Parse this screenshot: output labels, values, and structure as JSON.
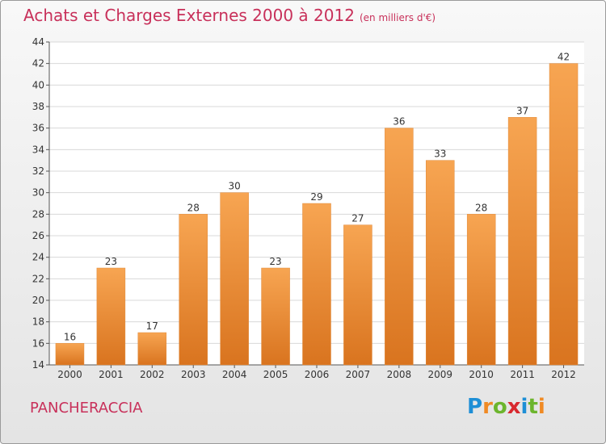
{
  "title": "Achats et Charges Externes 2000 à 2012",
  "subtitle": "(en milliers d'€)",
  "commune": "PANCHERACCIA",
  "logo": {
    "letters": [
      "P",
      "r",
      "o",
      "x",
      "i",
      "t",
      "i"
    ],
    "colors": [
      "#1e8fd6",
      "#f08a24",
      "#6cb52d",
      "#d8292f",
      "#1e8fd6",
      "#6cb52d",
      "#f08a24"
    ]
  },
  "colors": {
    "bar_top": "#f7a552",
    "bar_bottom": "#d9741f",
    "accent": "#c8305a"
  },
  "chart_data": {
    "type": "bar",
    "categories": [
      "2000",
      "2001",
      "2002",
      "2003",
      "2004",
      "2005",
      "2006",
      "2007",
      "2008",
      "2009",
      "2010",
      "2011",
      "2012"
    ],
    "values": [
      16,
      23,
      17,
      28,
      30,
      23,
      29,
      27,
      36,
      33,
      28,
      37,
      42
    ],
    "ylim": [
      14,
      44
    ],
    "yticks": [
      14,
      16,
      18,
      20,
      22,
      24,
      26,
      28,
      30,
      32,
      34,
      36,
      38,
      40,
      42,
      44
    ],
    "grid": true,
    "data_labels": true
  }
}
